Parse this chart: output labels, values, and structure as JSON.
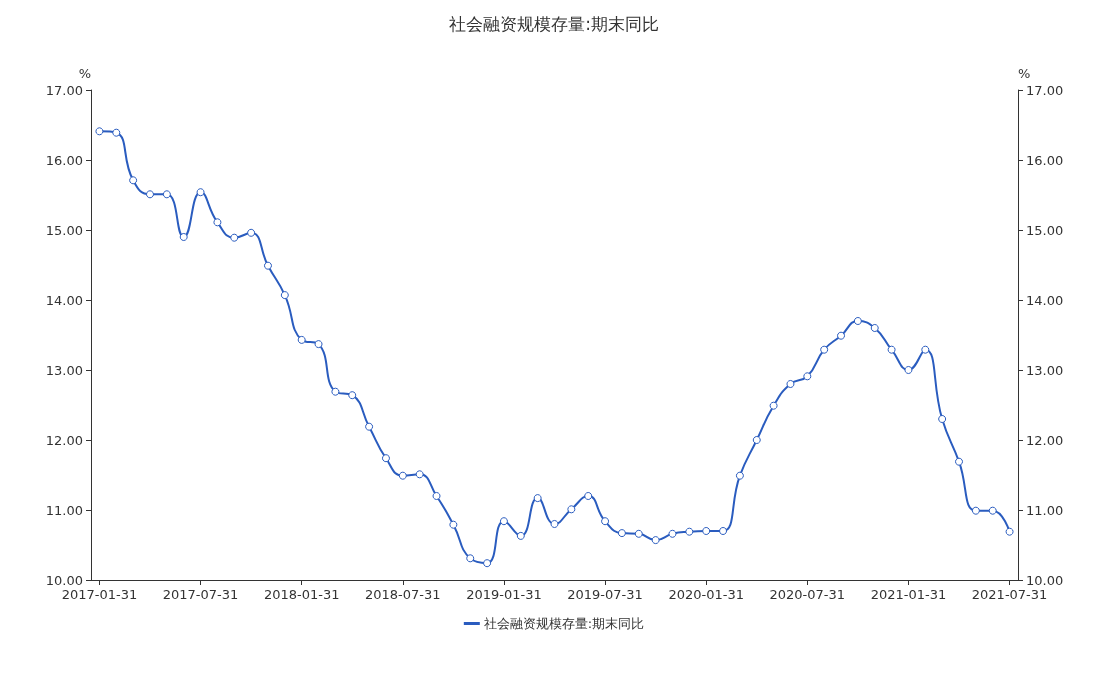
{
  "chart_data": {
    "type": "line",
    "title": "社会融资规模存量:期末同比",
    "categories": [
      "2017-01-31",
      null,
      null,
      null,
      null,
      null,
      "2017-07-31",
      null,
      null,
      null,
      null,
      null,
      "2018-01-31",
      null,
      null,
      null,
      null,
      null,
      "2018-07-31",
      null,
      null,
      null,
      null,
      null,
      "2019-01-31",
      null,
      null,
      null,
      null,
      null,
      "2019-07-31",
      null,
      null,
      null,
      null,
      null,
      "2020-01-31",
      null,
      null,
      null,
      null,
      null,
      "2020-07-31",
      null,
      null,
      null,
      null,
      null,
      "2021-01-31",
      null,
      null,
      null,
      null,
      null,
      "2021-07-31"
    ],
    "series": [
      {
        "name": "社会融资规模存量:期末同比",
        "color": "#2a5cbf",
        "values": [
          16.41,
          16.39,
          15.71,
          15.51,
          15.51,
          14.9,
          15.54,
          15.11,
          14.89,
          14.96,
          14.49,
          14.07,
          13.43,
          13.37,
          12.69,
          12.64,
          12.19,
          11.74,
          11.49,
          11.51,
          11.2,
          10.79,
          10.31,
          10.24,
          10.84,
          10.63,
          11.17,
          10.8,
          11.01,
          11.2,
          10.84,
          10.67,
          10.66,
          10.57,
          10.66,
          10.69,
          10.7,
          10.7,
          11.49,
          12.0,
          12.49,
          12.8,
          12.91,
          13.29,
          13.49,
          13.7,
          13.6,
          13.29,
          13.0,
          13.29,
          12.3,
          11.69,
          10.99,
          10.99,
          10.69
        ]
      }
    ],
    "ylabel": "%",
    "y2label": "%",
    "ylim": [
      10,
      17
    ],
    "yticks": [
      {
        "value": 10,
        "label": "10.00"
      },
      {
        "value": 11,
        "label": "11.00"
      },
      {
        "value": 12,
        "label": "12.00"
      },
      {
        "value": 13,
        "label": "13.00"
      },
      {
        "value": 14,
        "label": "14.00"
      },
      {
        "value": 15,
        "label": "15.00"
      },
      {
        "value": 16,
        "label": "16.00"
      },
      {
        "value": 17,
        "label": "17.00"
      }
    ],
    "y2lim": [
      10,
      17
    ],
    "y2ticks": [
      {
        "value": 10,
        "label": "10.00"
      },
      {
        "value": 11,
        "label": "11.00"
      },
      {
        "value": 12,
        "label": "12.00"
      },
      {
        "value": 13,
        "label": "13.00"
      },
      {
        "value": 14,
        "label": "14.00"
      },
      {
        "value": 15,
        "label": "15.00"
      },
      {
        "value": 16,
        "label": "16.00"
      },
      {
        "value": 17,
        "label": "17.00"
      }
    ],
    "grid": false,
    "legend": "bottom",
    "marker": "circle",
    "line_style": "solid"
  }
}
